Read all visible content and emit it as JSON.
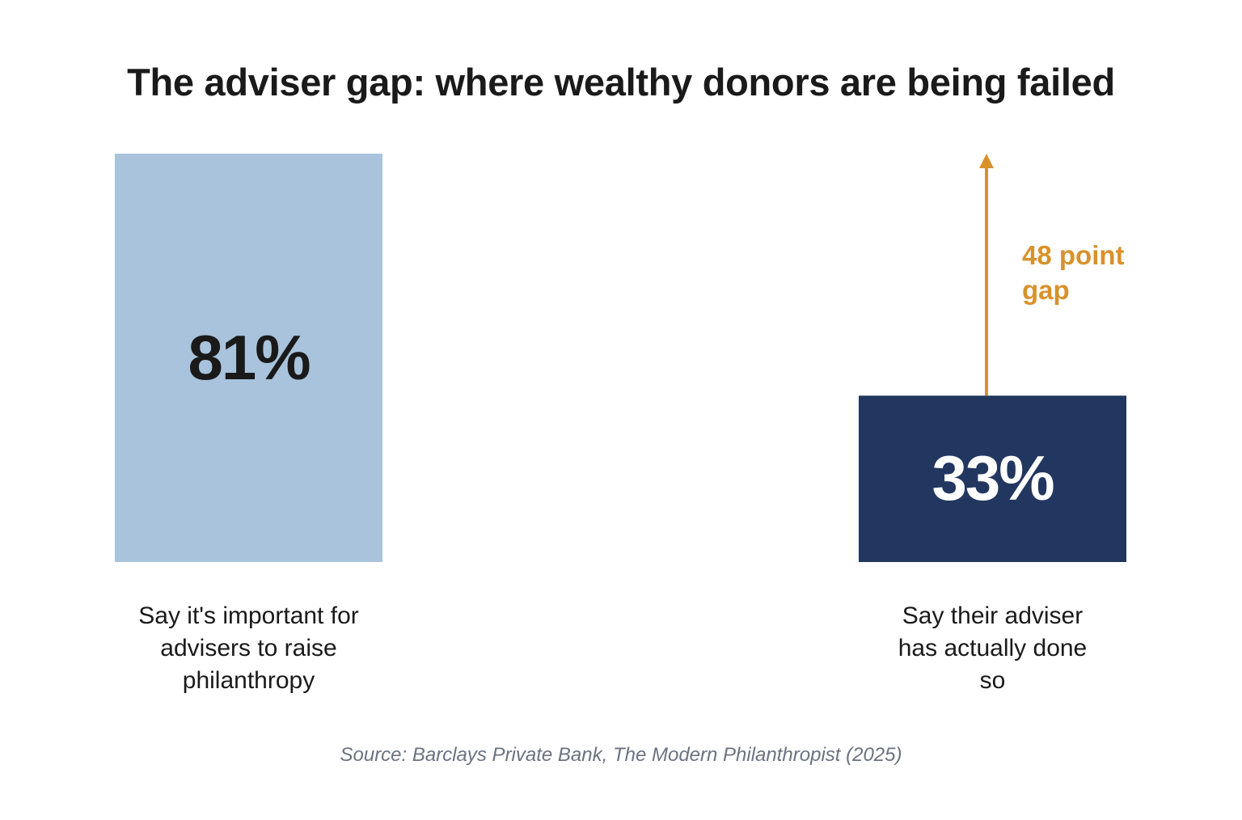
{
  "chart_data": {
    "type": "bar",
    "title": "The adviser gap: where wealthy donors are being failed",
    "categories": [
      "Say it's important for advisers to raise philanthropy",
      "Say their adviser has actually done so"
    ],
    "values": [
      81,
      33
    ],
    "value_labels": [
      "81%",
      "33%"
    ],
    "colors": [
      "#a9c3dc",
      "#22375f"
    ],
    "value_label_colors": [
      "#1a1a1a",
      "#ffffff"
    ],
    "ylim": [
      0,
      81
    ],
    "annotation": "48 point gap",
    "annotation_color": "#d9912b",
    "source": "Source: Barclays Private Bank, The Modern Philanthropist (2025)"
  }
}
